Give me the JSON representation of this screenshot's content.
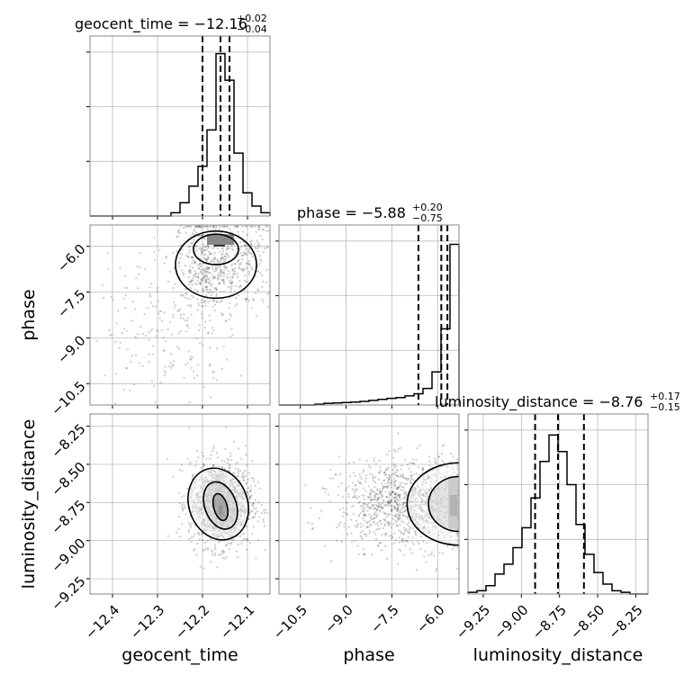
{
  "chart_data": {
    "type": "corner",
    "parameters": [
      "geocent_time",
      "phase",
      "luminosity_distance"
    ],
    "ranges": {
      "geocent_time": [
        -12.45,
        -12.05
      ],
      "phase": [
        -11.2,
        -5.3
      ],
      "luminosity_distance": [
        -9.35,
        -8.17
      ]
    },
    "ticks": {
      "geocent_time": [
        -12.4,
        -12.3,
        -12.2,
        -12.1
      ],
      "phase": [
        -10.5,
        -9.0,
        -7.5,
        -6.0
      ],
      "luminosity_distance": [
        -9.25,
        -9.0,
        -8.75,
        -8.5,
        -8.25
      ]
    },
    "tick_labels": {
      "geocent_time": [
        "−12.4",
        "−12.3",
        "−12.2",
        "−12.1"
      ],
      "phase": [
        "−10.5",
        "−9.0",
        "−7.5",
        "−6.0"
      ],
      "luminosity_distance": [
        "−9.25",
        "−9.00",
        "−8.75",
        "−8.50",
        "−8.25"
      ]
    },
    "axis_labels": {
      "geocent_time": "geocent_time",
      "phase": "phase",
      "luminosity_distance": "luminosity_distance"
    },
    "titles": [
      {
        "param": "geocent_time",
        "main": "geocent_time = −12.16",
        "plus": "+0.02",
        "minus": "−0.04"
      },
      {
        "param": "phase",
        "main": "phase = −5.88",
        "plus": "+0.20",
        "minus": "−0.75"
      },
      {
        "param": "luminosity_distance",
        "main": "luminosity_distance = −8.76",
        "plus": "+0.17",
        "minus": "−0.15"
      }
    ],
    "quantiles": {
      "geocent_time": [
        -12.2,
        -12.16,
        -12.14
      ],
      "phase": [
        -6.63,
        -5.88,
        -5.68
      ],
      "luminosity_distance": [
        -8.91,
        -8.76,
        -8.59
      ]
    },
    "histograms": {
      "geocent_time": {
        "bin_edges": [
          -12.45,
          -12.43,
          -12.41,
          -12.39,
          -12.37,
          -12.35,
          -12.33,
          -12.31,
          -12.29,
          -12.27,
          -12.25,
          -12.23,
          -12.21,
          -12.19,
          -12.17,
          -12.15,
          -12.13,
          -12.11,
          -12.09,
          -12.07,
          -12.05
        ],
        "counts": [
          0,
          0,
          0,
          0,
          0,
          0,
          0,
          0,
          0,
          0.02,
          0.08,
          0.18,
          0.3,
          0.52,
          0.98,
          0.82,
          0.38,
          0.14,
          0.06,
          0.02
        ]
      },
      "phase": {
        "bin_edges": [
          -11.2,
          -10.905,
          -10.61,
          -10.315,
          -10.02,
          -9.725,
          -9.43,
          -9.135,
          -8.84,
          -8.545,
          -8.25,
          -7.955,
          -7.66,
          -7.365,
          -7.07,
          -6.775,
          -6.48,
          -6.185,
          -5.89,
          -5.595,
          -5.3
        ],
        "counts": [
          0,
          0,
          0,
          0,
          0.005,
          0.01,
          0.012,
          0.015,
          0.018,
          0.022,
          0.028,
          0.034,
          0.04,
          0.045,
          0.055,
          0.068,
          0.1,
          0.2,
          0.46,
          0.97
        ]
      },
      "luminosity_distance": {
        "bin_edges": [
          -9.35,
          -9.291,
          -9.232,
          -9.173,
          -9.114,
          -9.055,
          -8.996,
          -8.937,
          -8.878,
          -8.819,
          -8.76,
          -8.701,
          -8.642,
          -8.583,
          -8.524,
          -8.465,
          -8.406,
          -8.347,
          -8.288,
          -8.229,
          -8.17
        ],
        "counts": [
          0.01,
          0.02,
          0.05,
          0.12,
          0.18,
          0.28,
          0.4,
          0.58,
          0.8,
          0.96,
          0.86,
          0.66,
          0.42,
          0.24,
          0.13,
          0.06,
          0.02,
          0.01,
          0,
          0
        ]
      }
    },
    "grid": true
  }
}
